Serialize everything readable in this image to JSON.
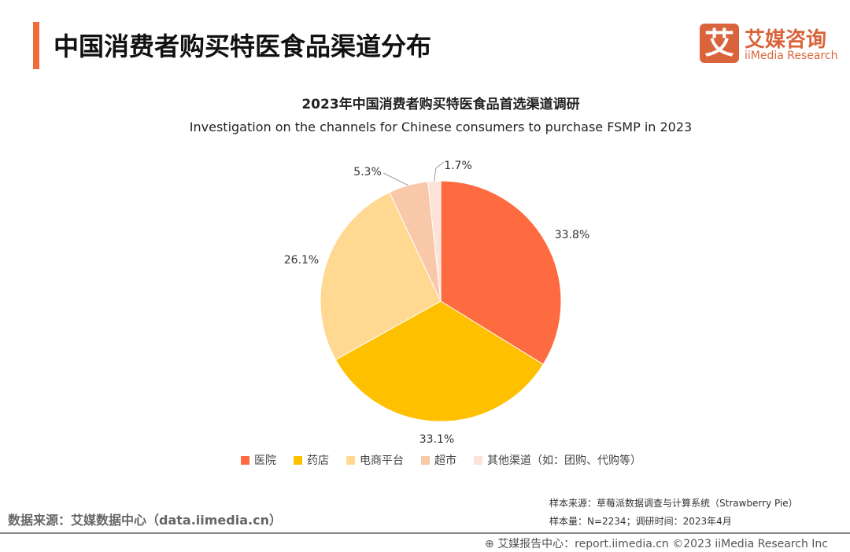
{
  "header": {
    "title": "中国消费者购买特医食品渠道分布",
    "logo_mark": "艾",
    "logo_cn": "艾媒咨询",
    "logo_en": "iiMedia Research"
  },
  "chart_data": {
    "type": "pie",
    "title": "2023年中国消费者购买特医食品首选渠道调研",
    "subtitle": "Investigation on the channels for Chinese consumers to purchase FSMP in 2023",
    "categories": [
      "医院",
      "药店",
      "电商平台",
      "超市",
      "其他渠道（如：团购、代购等）"
    ],
    "values": [
      33.8,
      33.1,
      26.1,
      5.3,
      1.7
    ],
    "labels": [
      "33.8%",
      "33.1%",
      "26.1%",
      "5.3%",
      "1.7%"
    ],
    "colors": [
      "#ff6b40",
      "#ffc000",
      "#ffd992",
      "#f8c8a8",
      "#fbe3d8"
    ],
    "legend": "bottom"
  },
  "footer": {
    "source": "数据来源：艾媒数据中心（data.iimedia.cn）",
    "sample_source": "样本来源：草莓派数据调查与计算系统（Strawberry Pie）",
    "sample_size": "样本量：N=2234；调研时间：2023年4月",
    "copyright": "艾媒报告中心：report.iimedia.cn   ©2023  iiMedia Research  Inc"
  }
}
